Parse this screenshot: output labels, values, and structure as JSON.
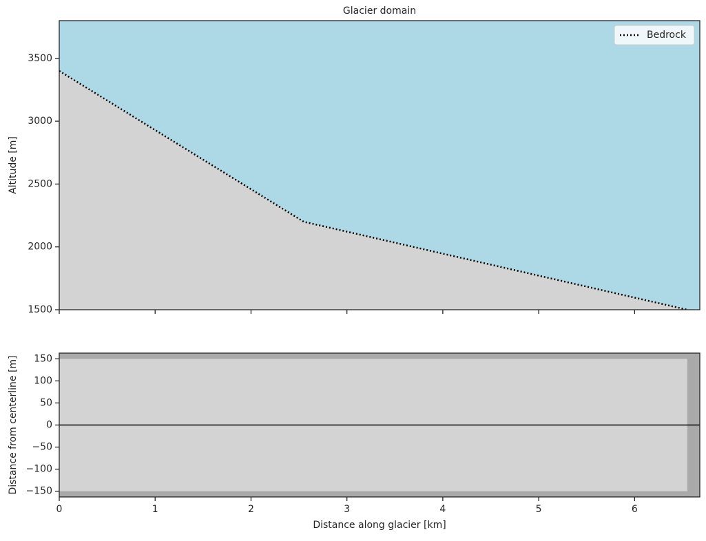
{
  "chart_data": [
    {
      "type": "line",
      "title": "Glacier domain",
      "ylabel": "Altitude [m]",
      "series": [
        {
          "name": "Bedrock",
          "color": "#000000",
          "x": [
            0,
            2.55,
            6.55
          ],
          "values": [
            3400,
            2200,
            1500
          ]
        }
      ],
      "below_color": "#d3d3d3",
      "above_color": "#add8e6",
      "xlim": [
        0,
        6.68
      ],
      "xticks": [
        0,
        1,
        2,
        3,
        4,
        5,
        6
      ],
      "show_xtick_labels": false,
      "ylim": [
        1500,
        3800
      ],
      "yticks": [
        1500,
        2000,
        2500,
        3000,
        3500
      ],
      "legend": "upper right"
    },
    {
      "type": "outline",
      "xlabel": "Distance along glacier [km]",
      "ylabel": "Distance from centerline [m]",
      "outline": {
        "x": [
          0,
          6.55
        ],
        "y": [
          -150,
          150
        ],
        "color": "#d3d3d3"
      },
      "background": "#a9a9a9",
      "centerline": 0,
      "xlim": [
        0,
        6.68
      ],
      "xticks": [
        0,
        1,
        2,
        3,
        4,
        5,
        6
      ],
      "show_xtick_labels": true,
      "ylim": [
        -163,
        163
      ],
      "yticks": [
        {
          "value": -150,
          "label": "−150"
        },
        {
          "value": -100,
          "label": "−100"
        },
        {
          "value": -50,
          "label": "−50"
        },
        0,
        50,
        100,
        150
      ]
    }
  ]
}
